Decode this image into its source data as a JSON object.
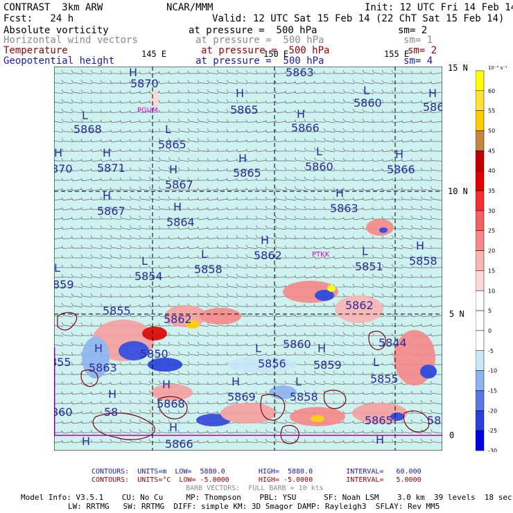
{
  "header": {
    "model": "CONTRAST  3km ARW",
    "org": "NCAR/MMM",
    "init": "Init: 12 UTC Fri 14 Feb 14",
    "fcst": "Fcst:   24 h",
    "valid": "Valid: 12 UTC Sat 15 Feb 14 (22 ChT Sat 15 Feb 14)"
  },
  "fields": [
    {
      "name": "Absolute vorticity",
      "pressure": "at pressure =  500 hPa",
      "sm": "sm= 2",
      "color": "#000000"
    },
    {
      "name": "Horizontal wind vectors",
      "pressure": "at pressure =  500 hPa",
      "sm": "sm= 1",
      "color": "#8a8a8a"
    },
    {
      "name": "Temperature",
      "pressure": "at pressure =  500 hPa",
      "sm": "sm= 2",
      "color": "#a00000"
    },
    {
      "name": "Geopotential height",
      "pressure": "at pressure =  500 hPa",
      "sm": "sm= 4",
      "color": "#1a1aa8"
    }
  ],
  "axes": {
    "lon_labels": [
      "145 E",
      "150 E",
      "155 E"
    ],
    "lat_labels": [
      "15 N",
      "10 N",
      "5 N",
      "0"
    ]
  },
  "stations": [
    "PGUM",
    "PTKK"
  ],
  "height_labels": [
    {
      "t": "H",
      "v": "5870"
    },
    {
      "t": "",
      "v": "5863"
    },
    {
      "t": "H",
      "v": "5865"
    },
    {
      "t": "L",
      "v": "5860"
    },
    {
      "t": "H",
      "v": "586"
    },
    {
      "t": "L",
      "v": "5868"
    },
    {
      "t": "L",
      "v": "5865"
    },
    {
      "t": "H",
      "v": "5866"
    },
    {
      "t": "H",
      "v": "870"
    },
    {
      "t": "H",
      "v": "5871"
    },
    {
      "t": "H",
      "v": "5867"
    },
    {
      "t": "H",
      "v": "5865"
    },
    {
      "t": "L",
      "v": "5860"
    },
    {
      "t": "H",
      "v": "5866"
    },
    {
      "t": "H",
      "v": "5867"
    },
    {
      "t": "H",
      "v": "5864"
    },
    {
      "t": "H",
      "v": "5863"
    },
    {
      "t": "L",
      "v": "5858"
    },
    {
      "t": "H",
      "v": "5862"
    },
    {
      "t": "L",
      "v": "5851"
    },
    {
      "t": "H",
      "v": "5858"
    },
    {
      "t": "L",
      "v": "5854"
    },
    {
      "t": "L",
      "v": "859"
    },
    {
      "t": "",
      "v": "5855"
    },
    {
      "t": "",
      "v": "5860"
    },
    {
      "t": "",
      "v": "5862"
    },
    {
      "t": "",
      "v": "5862"
    },
    {
      "t": "",
      "v": "5844"
    },
    {
      "t": "",
      "v": "855"
    },
    {
      "t": "H",
      "v": "5863"
    },
    {
      "t": "",
      "v": "5850"
    },
    {
      "t": "L",
      "v": "5856"
    },
    {
      "t": "H",
      "v": "5859"
    },
    {
      "t": "L",
      "v": "5855"
    },
    {
      "t": "H",
      "v": "5868"
    },
    {
      "t": "H",
      "v": "5869"
    },
    {
      "t": "L",
      "v": "5858"
    },
    {
      "t": "",
      "v": "860"
    },
    {
      "t": "H",
      "v": "58"
    },
    {
      "t": "",
      "v": "5865"
    },
    {
      "t": "",
      "v": "586"
    },
    {
      "t": "H",
      "v": "5866"
    },
    {
      "t": "H",
      "v": ""
    },
    {
      "t": "H",
      "v": ""
    }
  ],
  "colorbar": {
    "unit": "10⁻⁵ s⁻¹",
    "labels": [
      "60",
      "55",
      "50",
      "45",
      "40",
      "35",
      "30",
      "25",
      "20",
      "15",
      "10",
      "5",
      "0",
      "-5",
      "-10",
      "-15",
      "-20",
      "-25",
      "-30"
    ],
    "colors": [
      "#ffff00",
      "#ffe233",
      "#ffcc00",
      "#c8863c",
      "#c00000",
      "#e00000",
      "#f03030",
      "#f56060",
      "#f88888",
      "#fab4b4",
      "#fcd8d8",
      "#ffffff",
      "#ffffff",
      "#ffffff",
      "#c8e8f8",
      "#8cb4f0",
      "#5a78e6",
      "#2840dc",
      "#0000e6"
    ]
  },
  "footer": {
    "contours1": "CONTOURS:  UNITS=m  LOW=  5880.0        HIGH=  5880.0        INTERVAL=   60.000",
    "contours2": "CONTOURS:  UNITS=°C  LOW= -5.0000       HIGH= -5.0000        INTERVAL=   5.0000",
    "barbs": "BARB VECTORS:  FULL BARB = 10 kts",
    "model1": "Model Info: V3.5.1    CU: No Cu     MP: Thompson    PBL: YSU      SF: Noah LSM    3.0 km  39 levels  18 sec",
    "model2": "LW: RRTMG   SW: RRTMG  DIFF: simple KM: 3D Smagor DAMP: Rayleigh3  SFLAY: Rev MM5"
  }
}
